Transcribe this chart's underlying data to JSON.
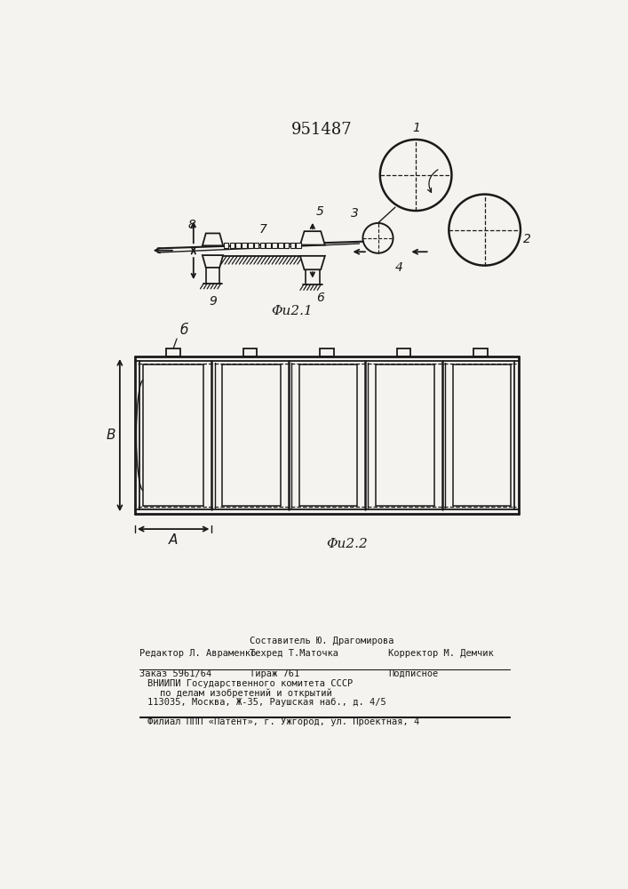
{
  "title": "951487",
  "fig1_label": "Φu2.1",
  "fig2_label": "Φu2.2",
  "bg_color": "#f5f3ef",
  "line_color": "#1a1a1a",
  "label_1": "1",
  "label_2": "2",
  "label_3": "3",
  "label_4": "4",
  "label_5": "5",
  "label_6": "6",
  "label_7": "7",
  "label_8": "8",
  "label_9": "9",
  "label_A": "A",
  "label_B": "B",
  "label_b": "б",
  "footer_line1": "Составитель Ю. Драгомирова",
  "footer_line2a": "Редактор Л. Авраменко",
  "footer_line2b": "Техред Т.Маточка",
  "footer_line2c": "Корректор М. Демчик",
  "footer_line3a": "Заказ 5961/64",
  "footer_line3b": "Тираж 761",
  "footer_line3c": "Подписное",
  "footer_line4": "ВНИИПИ Государственного комитета СССР",
  "footer_line5": "по делам изобретений и открытий",
  "footer_line6": "113035, Москва, Ж-35, Раушская наб., д. 4/5",
  "footer_line7": "Филиал ППП «Патент», г. Ужгород, ул. Проектная, 4"
}
